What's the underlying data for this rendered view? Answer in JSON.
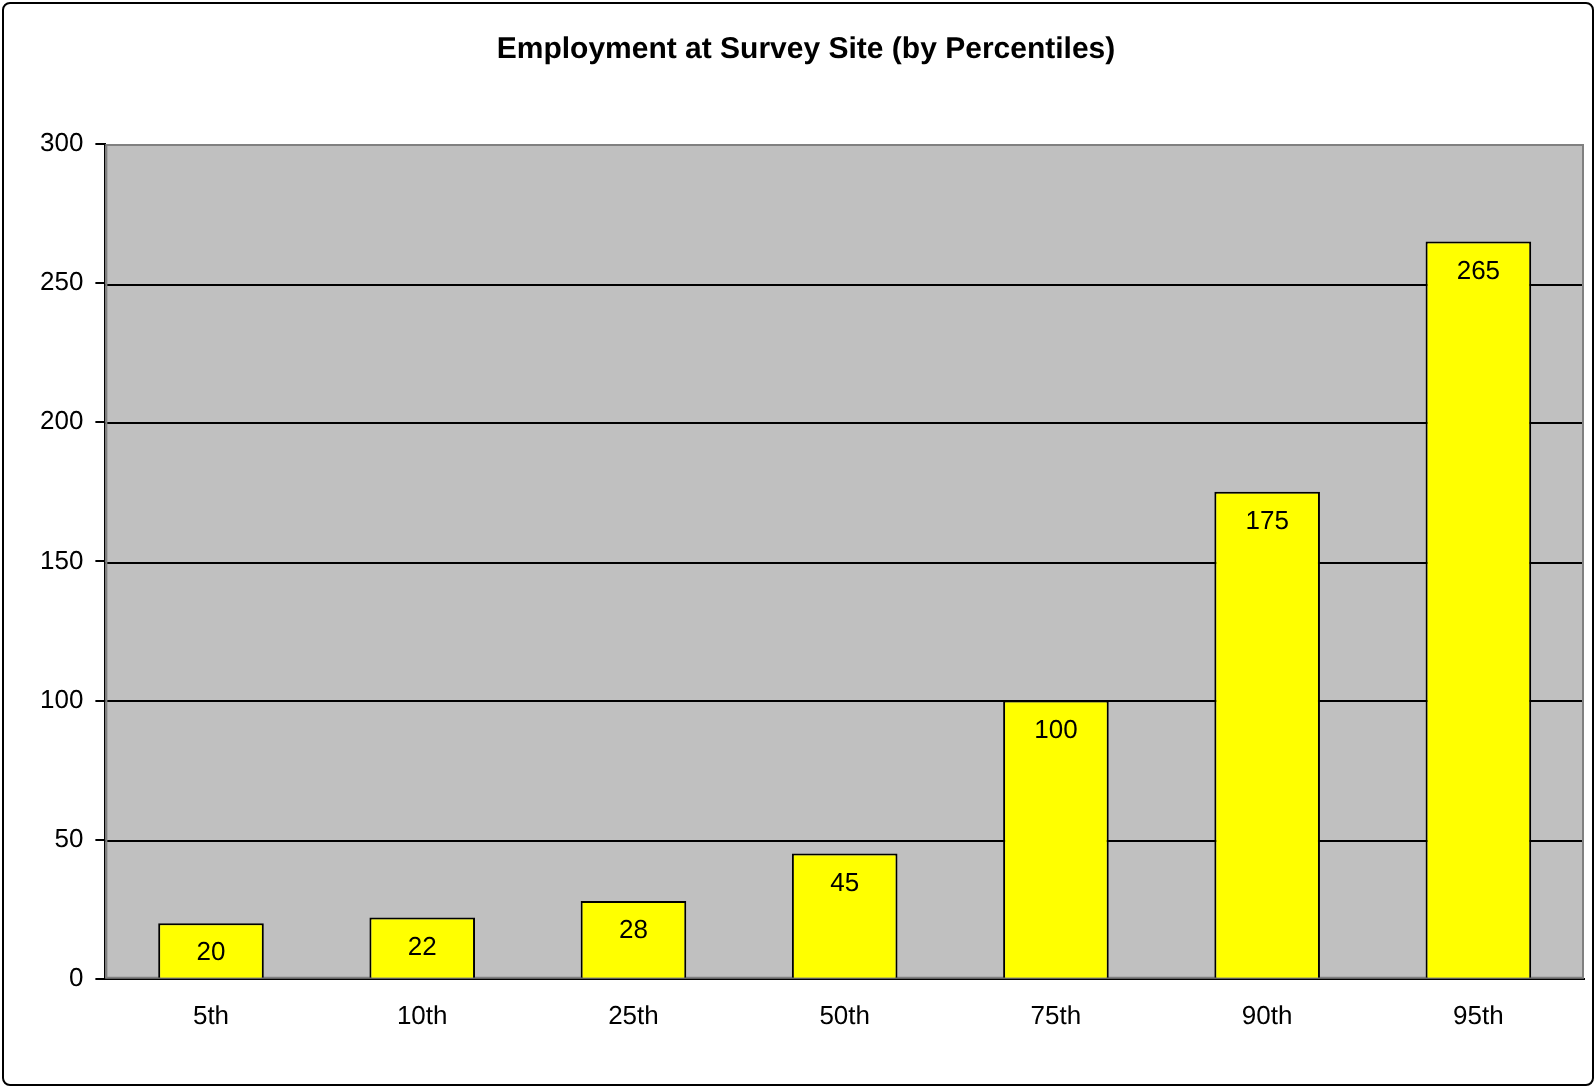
{
  "chart_data": {
    "type": "bar",
    "title": "Employment at Survey Site (by Percentiles)",
    "categories": [
      "5th",
      "10th",
      "25th",
      "50th",
      "75th",
      "90th",
      "95th"
    ],
    "values": [
      20,
      22,
      28,
      45,
      100,
      175,
      265
    ],
    "color": "#ffff00",
    "ylim": [
      0,
      300
    ],
    "yticks": [
      0,
      50,
      100,
      150,
      200,
      250,
      300
    ],
    "grid": "y",
    "data_labels": true,
    "legend": false
  }
}
